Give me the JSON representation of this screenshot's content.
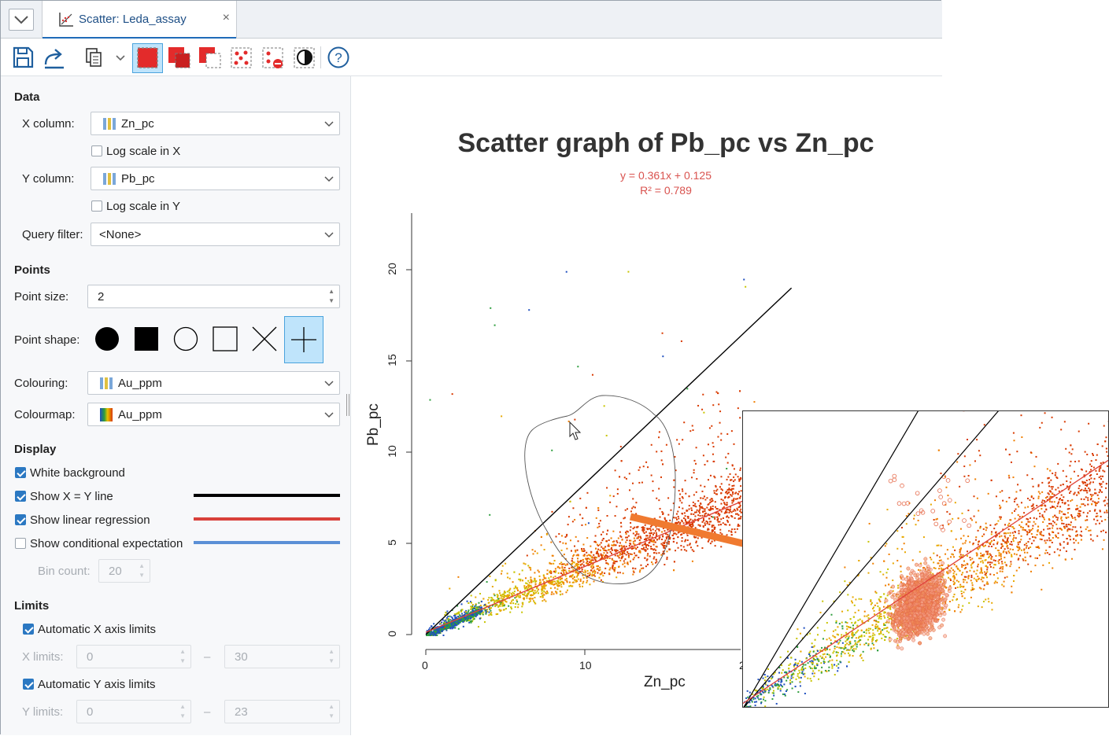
{
  "tab": {
    "title": "Scatter: Leda_assay",
    "close": "×"
  },
  "toolbar": {
    "icons": [
      "save-icon",
      "export-icon",
      "copy-icon",
      "chevron-down-icon",
      "select-rectangle-icon",
      "add-to-selection-icon",
      "remove-from-selection-icon",
      "select-points-icon",
      "deselect-points-icon",
      "invert-selection-icon",
      "help-icon"
    ],
    "help": "?"
  },
  "data_section": {
    "title": "Data",
    "x_label": "X column:",
    "x_value": "Zn_pc",
    "log_x": "Log scale in X",
    "log_x_checked": false,
    "y_label": "Y column:",
    "y_value": "Pb_pc",
    "log_y": "Log scale in Y",
    "log_y_checked": false,
    "query_label": "Query filter:",
    "query_value": "<None>"
  },
  "points_section": {
    "title": "Points",
    "size_label": "Point size:",
    "size_value": "2",
    "shape_label": "Point shape:",
    "shapes": [
      "filled-circle",
      "filled-square",
      "open-circle",
      "open-square",
      "cross",
      "plus"
    ],
    "selected_shape": "plus",
    "colouring_label": "Colouring:",
    "colouring_value": "Au_ppm",
    "colourmap_label": "Colourmap:",
    "colourmap_value": "Au_ppm"
  },
  "display_section": {
    "title": "Display",
    "white_bg": "White background",
    "white_bg_checked": true,
    "xy_line": "Show X = Y line",
    "xy_line_checked": true,
    "xy_line_color": "#000000",
    "lin_reg": "Show linear regression",
    "lin_reg_checked": true,
    "lin_reg_color": "#d9403a",
    "cond_exp": "Show conditional expectation",
    "cond_exp_checked": false,
    "cond_exp_color": "#5b8fd6",
    "bin_label": "Bin count:",
    "bin_value": "20"
  },
  "limits_section": {
    "title": "Limits",
    "auto_x": "Automatic X axis limits",
    "auto_x_checked": true,
    "x_limits_label": "X limits:",
    "x_min": "0",
    "x_max": "30",
    "auto_y": "Automatic Y axis limits",
    "auto_y_checked": true,
    "y_limits_label": "Y limits:",
    "y_min": "0",
    "y_max": "23",
    "dash": "–"
  },
  "chart_data": {
    "type": "scatter",
    "title": "Scatter graph of Pb_pc vs Zn_pc",
    "regression_equation": "y = 0.361x + 0.125",
    "r_squared": "R² = 0.789",
    "regression": {
      "slope": 0.361,
      "intercept": 0.125
    },
    "xlabel": "Zn_pc",
    "ylabel": "Pb_pc",
    "xlim": [
      0,
      30
    ],
    "ylim": [
      0,
      23
    ],
    "x_ticks": [
      "0",
      "10",
      "2"
    ],
    "y_ticks": [
      "0",
      "5",
      "10",
      "15",
      "20"
    ],
    "xy_line": true,
    "colour_by": "Au_ppm",
    "point_clusters": [
      {
        "x_range": [
          0,
          25
        ],
        "y_range": [
          0,
          11
        ],
        "note": "dense cloud along regression"
      }
    ],
    "colors": [
      "#1f4fbf",
      "#2e9e3e",
      "#c8c400",
      "#e8a800",
      "#f07f00",
      "#d93a00"
    ]
  }
}
